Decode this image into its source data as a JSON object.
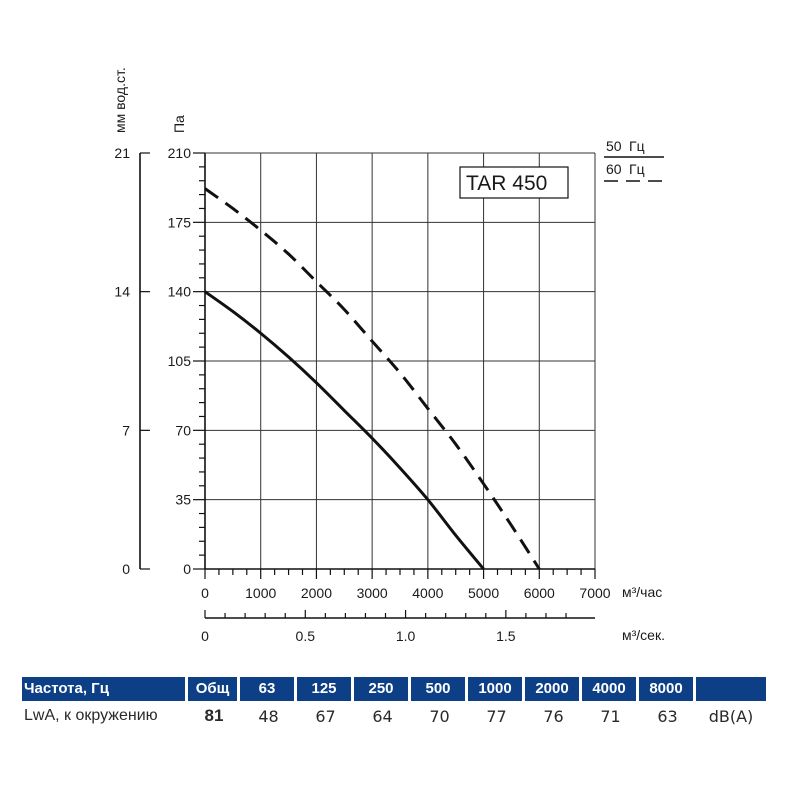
{
  "chart_data": {
    "type": "line",
    "title": "TAR 450",
    "xlabel": "м³/час",
    "x2label": "м³/сек.",
    "ylabel": "Па",
    "y2label": "мм вод.ст.",
    "xlim": [
      0,
      7000
    ],
    "ylim": [
      0,
      210
    ],
    "x_ticks": [
      "0",
      "1000",
      "2000",
      "3000",
      "4000",
      "5000",
      "6000",
      "7000"
    ],
    "x_tick_values": [
      0,
      1000,
      2000,
      3000,
      4000,
      5000,
      6000,
      7000
    ],
    "x2_ticks": [
      "0",
      "0.5",
      "1.0",
      "1.5"
    ],
    "x2_tick_values": [
      0,
      0.5,
      1.0,
      1.5
    ],
    "y_ticks": [
      "0",
      "35",
      "70",
      "105",
      "140",
      "175",
      "210"
    ],
    "y_tick_values": [
      0,
      35,
      70,
      105,
      140,
      175,
      210
    ],
    "y2_ticks": [
      "0",
      "7",
      "14",
      "21"
    ],
    "y2_tick_values": [
      0,
      7,
      14,
      21
    ],
    "legend": [
      {
        "name": "50",
        "unit": "Гц",
        "style": "solid"
      },
      {
        "name": "60",
        "unit": "Гц",
        "style": "dashed"
      }
    ],
    "series": [
      {
        "name": "50 Гц",
        "style": "solid",
        "x": [
          0,
          500,
          1000,
          1500,
          2000,
          2500,
          3000,
          3500,
          4000,
          4500,
          5000
        ],
        "y": [
          140,
          130,
          119,
          107,
          94,
          80,
          66,
          51,
          35,
          17,
          0
        ]
      },
      {
        "name": "60 Гц",
        "style": "dashed",
        "x": [
          0,
          500,
          1000,
          1500,
          2000,
          2500,
          3000,
          3500,
          4000,
          4500,
          5000,
          5500,
          6000
        ],
        "y": [
          192,
          182,
          171,
          159,
          145,
          131,
          115,
          99,
          81,
          63,
          43,
          22,
          0
        ]
      }
    ]
  },
  "noise_table": {
    "header_label": "Частота, Гц",
    "total_label": "Общ",
    "frequencies": [
      "63",
      "125",
      "250",
      "500",
      "1000",
      "2000",
      "4000",
      "8000"
    ],
    "row_label": "LwA, к окружению",
    "total_value": "81",
    "values": [
      "48",
      "67",
      "64",
      "70",
      "77",
      "76",
      "71",
      "63"
    ],
    "unit": "dB(A)"
  }
}
